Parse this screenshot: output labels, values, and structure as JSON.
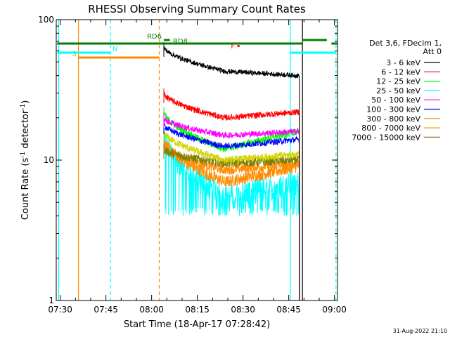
{
  "chart_data": {
    "type": "line",
    "title": "RHESSI Observing Summary Count Rates",
    "xlabel": "Start Time (18-Apr-17 07:28:42)",
    "ylabel_main": "Count Rate (s",
    "ylabel_sup1": "-1",
    "ylabel_mid": " detector",
    "ylabel_sup2": "-1",
    "ylabel_end": ")",
    "yscale": "log",
    "ylim": [
      1,
      100
    ],
    "xlim_minutes": [
      28.7,
      121
    ],
    "x_ticks": [
      {
        "t": 30,
        "label": "07:30"
      },
      {
        "t": 45,
        "label": "07:45"
      },
      {
        "t": 60,
        "label": "08:00"
      },
      {
        "t": 75,
        "label": "08:15"
      },
      {
        "t": 90,
        "label": "08:30"
      },
      {
        "t": 105,
        "label": "08:45"
      },
      {
        "t": 120,
        "label": "09:00"
      }
    ],
    "y_ticks": [
      {
        "v": 1,
        "label": "1"
      },
      {
        "v": 10,
        "label": "10"
      },
      {
        "v": 100,
        "label": "100"
      }
    ],
    "legend_header": [
      "Det 3,6, FDecim 1,",
      "Att 0"
    ],
    "legend_position": "right",
    "series": [
      {
        "name": "3 - 6 keV",
        "color": "#000000",
        "start": [
          64,
          52
        ],
        "mid": [
          84,
          43
        ],
        "end": [
          108,
          40
        ],
        "noise": 0.04,
        "minv": 0
      },
      {
        "name": "6 - 12 keV",
        "color": "#ff0000",
        "start": [
          30,
          32
        ],
        "mid": [
          84,
          20
        ],
        "end": [
          108,
          22
        ],
        "noise": 0.05,
        "minv": 0
      },
      {
        "name": "12 - 25 keV",
        "color": "#00ff00",
        "start": [
          22,
          24
        ],
        "mid": [
          84,
          12
        ],
        "end": [
          108,
          16
        ],
        "noise": 0.06,
        "minv": 0
      },
      {
        "name": "25 - 50 keV",
        "color": "#00ffff",
        "start": [
          15,
          17
        ],
        "mid": [
          84,
          5.5
        ],
        "end": [
          108,
          7
        ],
        "noise": 0.2,
        "minv": 4
      },
      {
        "name": "50 - 100 keV",
        "color": "#ff00ff",
        "start": [
          20,
          22
        ],
        "mid": [
          84,
          15
        ],
        "end": [
          108,
          16
        ],
        "noise": 0.05,
        "minv": 0
      },
      {
        "name": "100 - 300 keV",
        "color": "#0000ff",
        "start": [
          18,
          19
        ],
        "mid": [
          84,
          12.5
        ],
        "end": [
          108,
          14
        ],
        "noise": 0.05,
        "minv": 0
      },
      {
        "name": "300 - 800 keV",
        "color": "#ff8c00",
        "start": [
          14,
          15
        ],
        "mid": [
          84,
          7
        ],
        "end": [
          108,
          9
        ],
        "noise": 0.1,
        "minv": 0
      },
      {
        "name": "800 - 7000 keV",
        "color": "#ff8c00",
        "start": [
          13,
          14
        ],
        "mid": [
          84,
          8.5
        ],
        "end": [
          108,
          9.5
        ],
        "noise": 0.08,
        "minv": 0
      },
      {
        "name": "7000 - 15000 keV",
        "color": "#808000",
        "start": [
          12,
          13
        ],
        "mid": [
          84,
          9.5
        ],
        "end": [
          108,
          10
        ],
        "noise": 0.07,
        "minv": 0
      }
    ],
    "yellow_series": {
      "start": [
        16,
        17
      ],
      "mid": [
        84,
        10
      ],
      "end": [
        108,
        11
      ],
      "noise": 0.06
    },
    "data_start_minutes": 64,
    "data_end_minutes": 108.5,
    "vertical_lines": [
      {
        "t": 29.5,
        "color": "#00ffff",
        "dash": false
      },
      {
        "t": 36,
        "color": "#ff8c00",
        "dash": false
      },
      {
        "t": 46.5,
        "color": "#00ffff",
        "dash": true
      },
      {
        "t": 62.5,
        "color": "#ff8c00",
        "dash": true
      },
      {
        "t": 105.5,
        "color": "#00ffff",
        "dash": false
      },
      {
        "t": 109.5,
        "color": "#000000",
        "dash": false
      },
      {
        "t": 120.5,
        "color": "#00ffff",
        "dash": true
      }
    ],
    "flag_bars": [
      {
        "label": "S",
        "color": "#ff8c00",
        "t0": 36,
        "t1": 62.5,
        "y": 82,
        "label_side": "left"
      },
      {
        "label": "N",
        "color": "#00ffff",
        "t0": 29,
        "t1": 46.5,
        "y": 75,
        "label_side": "right"
      },
      {
        "label": "N",
        "color": "#00ffff",
        "t0": 105.5,
        "t1": 120.5,
        "y": 75,
        "label_side": "none"
      },
      {
        "label": "",
        "color": "#007f00",
        "t0": 29,
        "t1": 109.5,
        "y": 62,
        "label_side": "none"
      },
      {
        "label": "",
        "color": "#007f00",
        "t0": 119,
        "t1": 121,
        "y": 62,
        "label_side": "none"
      },
      {
        "label": "",
        "color": "#007f00",
        "t0": 109.5,
        "t1": 117.5,
        "y": 57,
        "label_side": "none"
      },
      {
        "label": "RD6",
        "color": "#007f00",
        "t0": 64,
        "t1": 66,
        "y": 57,
        "label_side": "left"
      }
    ],
    "text_markers": [
      {
        "label": "RD8",
        "color": "#007f00",
        "t": 67,
        "y": 62
      },
      {
        "label": "F",
        "color": "#ff0000",
        "t": 86,
        "y": 69,
        "dot_t": 88.5
      }
    ],
    "footer_date": "31-Aug-2022 21:10"
  }
}
